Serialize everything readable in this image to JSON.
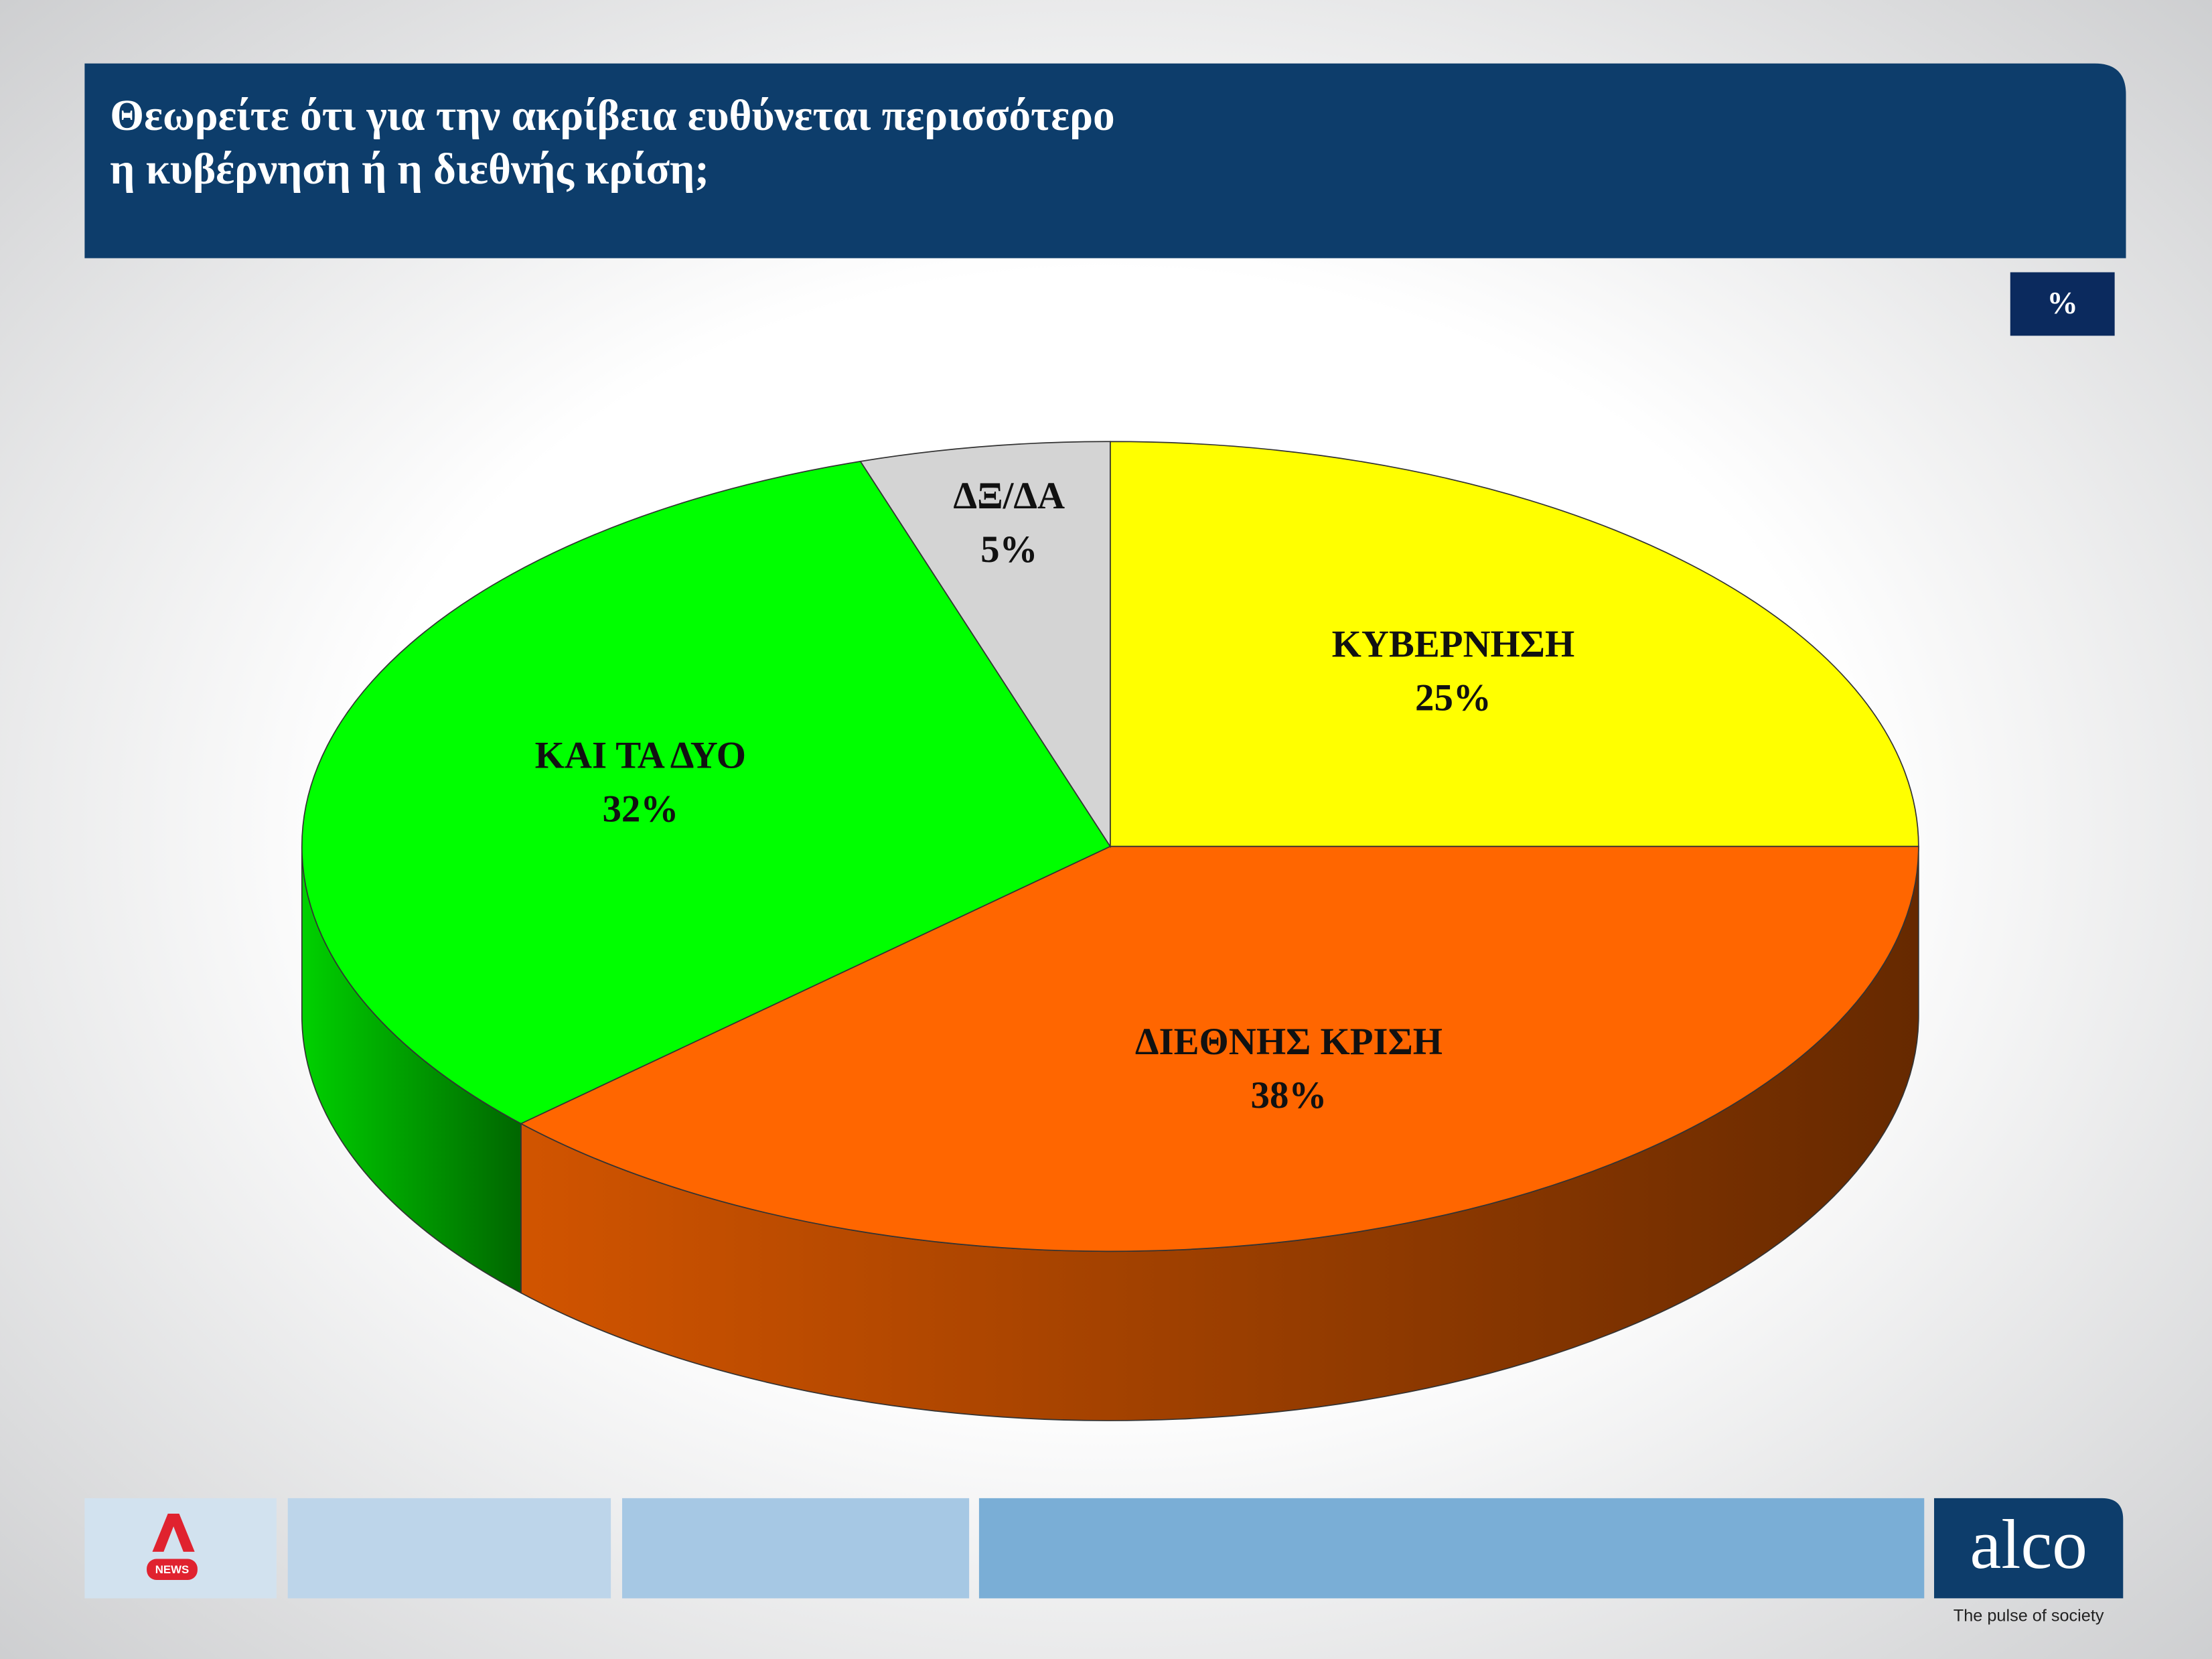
{
  "chart_data": {
    "type": "pie",
    "title": "Θεωρείτε ότι για την ακρίβεια ευθύνεται περισσότερο\nη κυβέρνηση ή η διεθνής κρίση;",
    "unit_label": "%",
    "categories": [
      "ΚΥΒΕΡΝΗΣΗ",
      "ΔΙΕΘΝΗΣ ΚΡΙΣΗ",
      "ΚΑΙ ΤΑ ΔΥΟ",
      "ΔΞ/ΔΑ"
    ],
    "values": [
      25,
      38,
      32,
      5
    ],
    "value_labels": [
      "25%",
      "38%",
      "32%",
      "5%"
    ],
    "colors": [
      "#ffff00",
      "#ff6600",
      "#00ff00",
      "#d4d4d4"
    ]
  },
  "branding": {
    "news_logo": "NEWS",
    "brand": "alco",
    "tagline": "The pulse of society"
  }
}
